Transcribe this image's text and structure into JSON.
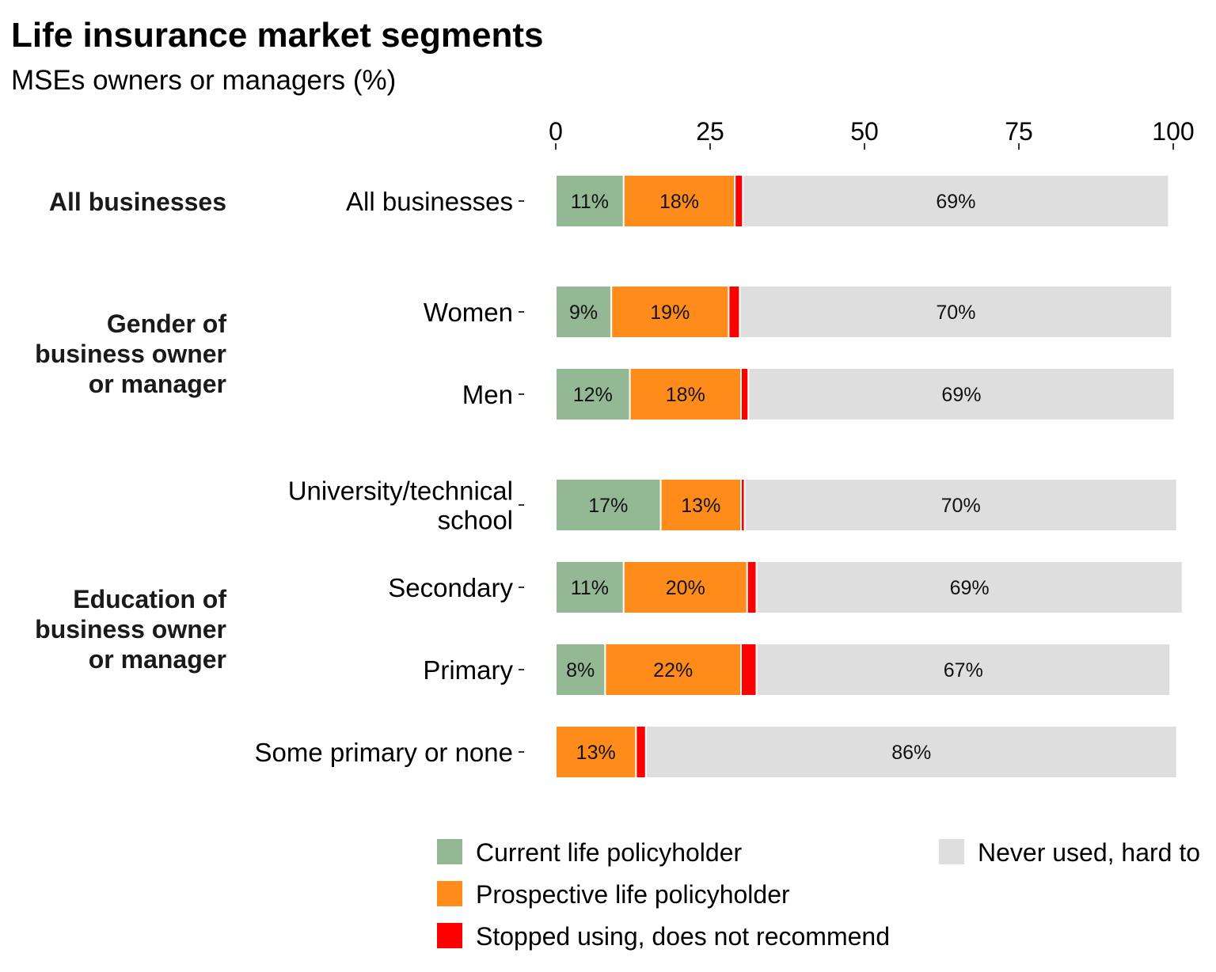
{
  "chart_data": {
    "type": "bar",
    "orientation": "horizontal",
    "stacked": true,
    "title": "Life insurance market segments",
    "subtitle": "MSEs owners or managers (%)",
    "xlim": [
      0,
      100
    ],
    "x_ticks": [
      "0",
      "25",
      "50",
      "75",
      "100"
    ],
    "grid": false,
    "legend_position": "bottom",
    "groups": [
      {
        "label": "All businesses",
        "categories": [
          "All businesses"
        ]
      },
      {
        "label": "Gender of\nbusiness owner\nor manager",
        "categories": [
          "Women",
          "Men"
        ]
      },
      {
        "label": "Education of\nbusiness owner\nor manager",
        "categories": [
          "University/technical\nschool",
          "Secondary",
          "Primary",
          "Some primary or none"
        ]
      }
    ],
    "categories": [
      "All businesses",
      "Women",
      "Men",
      "University/technical\nschool",
      "Secondary",
      "Primary",
      "Some primary or none"
    ],
    "series": [
      {
        "name": "Current life policyholder",
        "color": "#93b893",
        "values": [
          11,
          9,
          12,
          17,
          11,
          8,
          0
        ],
        "labels": [
          "11%",
          "9%",
          "12%",
          "17%",
          "11%",
          "8%",
          ""
        ]
      },
      {
        "name": "Prospective life policyholder",
        "color": "#ff8c1a",
        "values": [
          18,
          19,
          18,
          13,
          20,
          22,
          13
        ],
        "labels": [
          "18%",
          "19%",
          "18%",
          "13%",
          "20%",
          "22%",
          "13%"
        ]
      },
      {
        "name": "Stopped using, does not recommend",
        "color": "#ff0000",
        "values": [
          1.3,
          1.8,
          1.2,
          0.6,
          1.5,
          2.5,
          1.6
        ],
        "labels": [
          "",
          "",
          "",
          "",
          "",
          "",
          ""
        ]
      },
      {
        "name": "Never used, hard to",
        "color": "#dedede",
        "values": [
          69,
          70,
          69,
          70,
          69,
          67,
          86
        ],
        "labels": [
          "69%",
          "70%",
          "69%",
          "70%",
          "69%",
          "67%",
          "86%"
        ]
      }
    ]
  }
}
